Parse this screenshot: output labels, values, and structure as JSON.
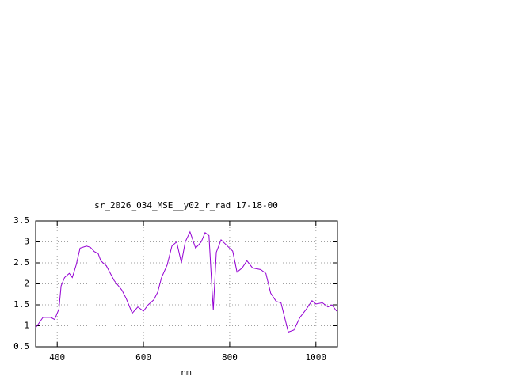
{
  "chart_data": {
    "type": "line",
    "title": "sr_2026_034_MSE__y02_r_rad 17-18-00",
    "x_label": "nm",
    "xlim": [
      350,
      1050
    ],
    "xticks": [
      400,
      600,
      800,
      1000
    ],
    "ylim": [
      0.5,
      3.5
    ],
    "yticks": [
      0.5,
      1,
      1.5,
      2,
      2.5,
      3,
      3.5
    ],
    "grid": true,
    "series": [
      {
        "color": "#9400d3",
        "x": [
          350,
          367,
          385,
          394,
          404,
          409,
          417,
          428,
          435,
          444,
          453,
          468,
          477,
          486,
          495,
          501,
          514,
          532,
          550,
          560,
          574,
          587,
          600,
          611,
          624,
          633,
          642,
          655,
          666,
          677,
          688,
          697,
          708,
          721,
          734,
          743,
          752,
          758,
          762,
          769,
          780,
          795,
          807,
          817,
          829,
          840,
          853,
          872,
          884,
          895,
          908,
          919,
          936,
          949,
          963,
          978,
          991,
          1000,
          1015,
          1028,
          1037,
          1048
        ],
        "values": [
          0.95,
          1.2,
          1.2,
          1.15,
          1.4,
          1.95,
          2.15,
          2.25,
          2.15,
          2.45,
          2.85,
          2.9,
          2.87,
          2.77,
          2.72,
          2.55,
          2.43,
          2.08,
          1.85,
          1.65,
          1.3,
          1.45,
          1.35,
          1.5,
          1.62,
          1.8,
          2.15,
          2.45,
          2.9,
          3.0,
          2.5,
          3.0,
          3.24,
          2.85,
          3.0,
          3.22,
          3.15,
          2.05,
          1.38,
          2.75,
          3.05,
          2.9,
          2.78,
          2.28,
          2.38,
          2.55,
          2.38,
          2.34,
          2.25,
          1.78,
          1.58,
          1.55,
          0.85,
          0.9,
          1.2,
          1.4,
          1.6,
          1.52,
          1.55,
          1.45,
          1.5,
          1.35
        ]
      }
    ]
  }
}
